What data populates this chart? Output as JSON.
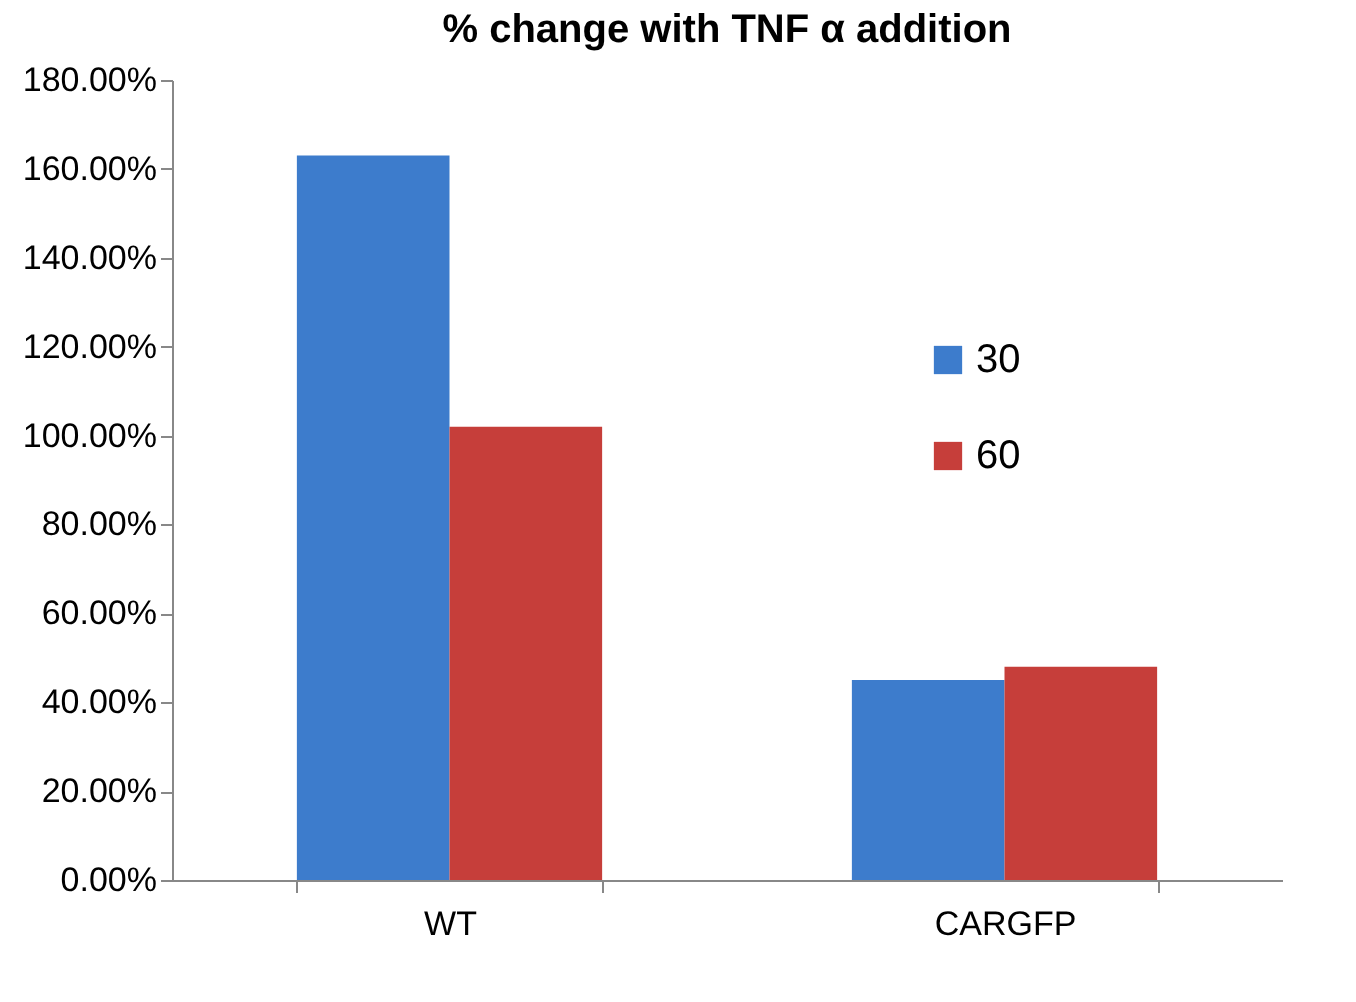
{
  "chart_data": {
    "type": "bar",
    "title": "% change with TNF α addition",
    "categories": [
      "WT",
      "CARGFP"
    ],
    "series": [
      {
        "name": "30",
        "color": "#3d7ccc",
        "values": [
          163,
          45
        ]
      },
      {
        "name": "60",
        "color": "#c63e3a",
        "values": [
          102,
          48
        ]
      }
    ],
    "ylim": [
      0,
      180
    ],
    "yticks": [
      {
        "value": 0,
        "label": "0.00%"
      },
      {
        "value": 20,
        "label": "20.00%"
      },
      {
        "value": 40,
        "label": "40.00%"
      },
      {
        "value": 60,
        "label": "60.00%"
      },
      {
        "value": 80,
        "label": "80.00%"
      },
      {
        "value": 100,
        "label": "100.00%"
      },
      {
        "value": 120,
        "label": "120.00%"
      },
      {
        "value": 140,
        "label": "140.00%"
      },
      {
        "value": 160,
        "label": "160.00%"
      },
      {
        "value": 180,
        "label": "180.00%"
      }
    ],
    "grid": false,
    "legend": "top right"
  }
}
